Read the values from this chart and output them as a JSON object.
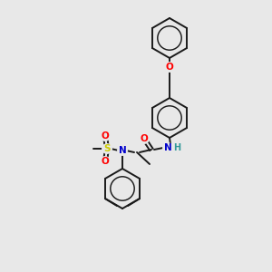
{
  "background_color": "#e8e8e8",
  "bond_color": "#1a1a1a",
  "atom_colors": {
    "O": "#ff0000",
    "N": "#0000cc",
    "S": "#cccc00",
    "H": "#339999",
    "C": "#1a1a1a"
  },
  "figsize": [
    3.0,
    3.0
  ],
  "dpi": 100,
  "lw": 1.4,
  "ring_r": 22,
  "font_size": 7.5
}
